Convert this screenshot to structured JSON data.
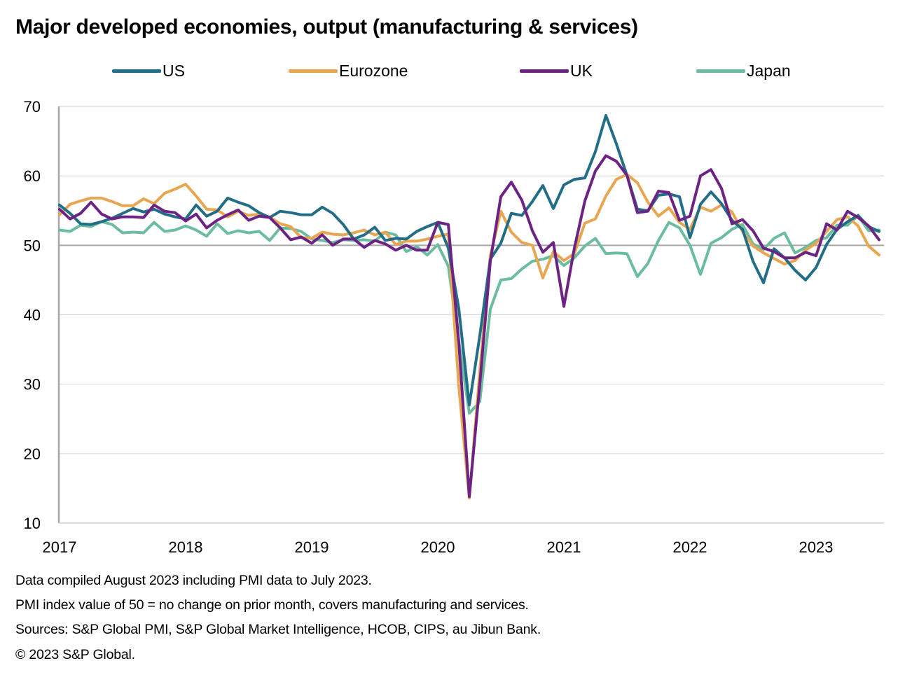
{
  "chart_data": {
    "type": "line",
    "title": "Major developed economies, output (manufacturing & services)",
    "xlabel": "",
    "ylabel": "",
    "ylim": [
      10,
      70
    ],
    "yticks": [
      10,
      20,
      30,
      40,
      50,
      60,
      70
    ],
    "xticks": [
      "2017",
      "2018",
      "2019",
      "2020",
      "2021",
      "2022",
      "2023"
    ],
    "x_start": "2017-01",
    "x_end": "2023-07",
    "frequency": "monthly",
    "reference_line": 50,
    "grid": true,
    "legend_position": "top",
    "series": [
      {
        "name": "US",
        "color": "#236E87",
        "values": [
          55.8,
          54.6,
          53.1,
          53.0,
          53.4,
          53.9,
          54.6,
          55.3,
          54.8,
          55.2,
          54.5,
          54.1,
          53.8,
          55.8,
          54.2,
          54.9,
          56.8,
          56.2,
          55.7,
          54.7,
          54.0,
          54.9,
          54.7,
          54.4,
          54.4,
          55.5,
          54.6,
          53.0,
          50.9,
          51.5,
          52.6,
          50.7,
          51.0,
          50.9,
          52.0,
          52.7,
          53.3,
          49.6,
          40.9,
          27.0,
          37.0,
          48.0,
          50.3,
          54.6,
          54.3,
          56.3,
          58.6,
          55.3,
          58.7,
          59.5,
          59.7,
          63.5,
          68.7,
          64.6,
          60.1,
          55.2,
          55.0,
          57.2,
          57.4,
          57.0,
          51.1,
          55.9,
          57.7,
          56.0,
          53.6,
          52.3,
          47.7,
          44.6,
          49.5,
          48.2,
          46.4,
          45.0,
          46.8,
          50.1,
          52.3,
          53.4,
          54.3,
          52.7,
          52.0
        ]
      },
      {
        "name": "Eurozone",
        "color": "#E8A651",
        "values": [
          54.4,
          55.9,
          56.4,
          56.8,
          56.8,
          56.3,
          55.7,
          55.7,
          56.7,
          56.0,
          57.5,
          58.1,
          58.8,
          57.1,
          55.2,
          55.1,
          54.1,
          54.9,
          54.3,
          54.5,
          54.1,
          53.1,
          52.7,
          51.1,
          51.0,
          51.9,
          51.6,
          51.5,
          51.8,
          52.2,
          51.5,
          51.9,
          50.1,
          50.6,
          50.6,
          50.9,
          51.3,
          51.6,
          29.7,
          13.6,
          31.9,
          48.5,
          54.9,
          51.9,
          50.4,
          50.0,
          45.3,
          49.1,
          47.8,
          48.8,
          53.2,
          53.8,
          57.1,
          59.5,
          60.2,
          59.0,
          56.2,
          54.2,
          55.4,
          53.3,
          52.3,
          55.5,
          54.9,
          55.8,
          54.8,
          52.0,
          49.9,
          48.9,
          48.1,
          47.3,
          47.8,
          49.3,
          50.3,
          52.0,
          53.7,
          54.1,
          52.8,
          49.9,
          48.6
        ]
      },
      {
        "name": "UK",
        "color": "#6C2383",
        "values": [
          55.2,
          53.8,
          54.6,
          56.2,
          54.5,
          53.8,
          54.1,
          54.1,
          54.0,
          55.8,
          54.9,
          54.7,
          53.5,
          54.5,
          52.5,
          53.6,
          54.4,
          55.1,
          53.6,
          54.2,
          54.0,
          52.5,
          50.8,
          51.2,
          50.3,
          51.5,
          50.0,
          50.9,
          50.9,
          49.7,
          50.7,
          50.2,
          49.3,
          50.0,
          49.3,
          49.3,
          53.3,
          53.0,
          36.0,
          13.8,
          30.0,
          47.7,
          57.0,
          59.1,
          56.5,
          52.1,
          49.0,
          50.4,
          41.2,
          49.6,
          56.4,
          60.7,
          62.9,
          62.1,
          60.1,
          54.7,
          54.9,
          57.8,
          57.6,
          53.6,
          54.2,
          60.0,
          60.9,
          58.2,
          53.1,
          53.7,
          52.1,
          49.6,
          49.1,
          48.2,
          48.2,
          49.0,
          48.5,
          53.1,
          52.2,
          54.9,
          54.0,
          52.8,
          50.8
        ]
      },
      {
        "name": "Japan",
        "color": "#6CBDA0",
        "values": [
          52.2,
          52.0,
          52.9,
          52.7,
          53.4,
          53.0,
          51.8,
          51.9,
          51.8,
          53.3,
          52.0,
          52.2,
          52.8,
          52.2,
          51.3,
          53.1,
          51.7,
          52.1,
          51.8,
          52.0,
          50.7,
          52.5,
          52.4,
          52.0,
          50.9,
          50.7,
          50.4,
          50.8,
          50.7,
          50.8,
          50.6,
          51.9,
          51.5,
          49.1,
          49.8,
          48.6,
          50.1,
          47.0,
          36.2,
          25.8,
          27.5,
          40.8,
          45.0,
          45.2,
          46.6,
          47.7,
          48.0,
          48.5,
          47.1,
          48.2,
          49.9,
          51.0,
          48.8,
          48.9,
          48.8,
          45.5,
          47.4,
          50.7,
          53.3,
          52.5,
          50.0,
          45.8,
          50.3,
          51.1,
          52.3,
          53.0,
          50.2,
          49.4,
          51.0,
          51.8,
          48.9,
          49.7,
          50.7,
          51.1,
          52.9,
          52.9,
          54.3,
          52.1,
          52.2
        ]
      }
    ]
  },
  "footnotes": [
    "Data compiled August 2023 including PMI data to July 2023.",
    "PMI index value of 50 = no change on prior month, covers manufacturing and services.",
    "Sources: S&P Global PMI, S&P Global Market Intelligence, HCOB, CIPS, au Jibun Bank.",
    "© 2023 S&P Global."
  ]
}
